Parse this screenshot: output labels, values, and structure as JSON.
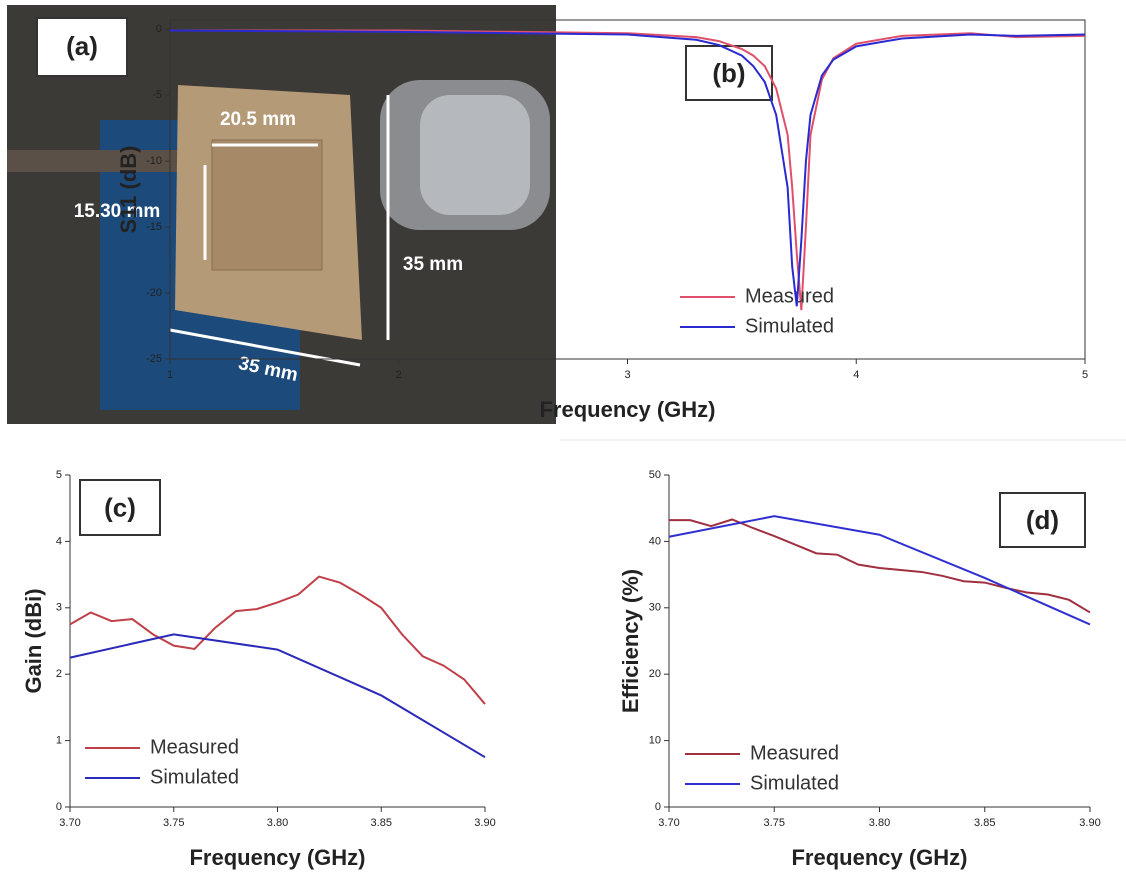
{
  "photo": {
    "label": "(a)",
    "dimensions": [
      "20.5 mm",
      "15.30 mm",
      "35 mm",
      "35 mm"
    ]
  },
  "chart_data": [
    {
      "type": "line",
      "annotation": "(b)",
      "x_label": "Frequency (GHz)",
      "y_label": "S11 (dB)",
      "xlim": [
        1,
        5
      ],
      "xticks": [
        1,
        2,
        3,
        4,
        5
      ],
      "ylim": [
        -25,
        0.7
      ],
      "yticks": [
        -25,
        -20,
        -15,
        -10,
        -5,
        0
      ],
      "frame": true,
      "series": [
        {
          "name": "Measured",
          "color": "#e0506a",
          "x": [
            1,
            2,
            3,
            3.3,
            3.4,
            3.5,
            3.55,
            3.6,
            3.65,
            3.7,
            3.72,
            3.74,
            3.76,
            3.78,
            3.8,
            3.85,
            3.9,
            4.0,
            4.2,
            4.5,
            4.7,
            5
          ],
          "values": [
            -0.1,
            -0.1,
            -0.3,
            -0.6,
            -0.9,
            -1.5,
            -2.0,
            -2.8,
            -4.5,
            -8,
            -12,
            -17,
            -21.3,
            -15,
            -8,
            -3.8,
            -2.2,
            -1.1,
            -0.5,
            -0.3,
            -0.6,
            -0.5
          ]
        },
        {
          "name": "Simulated",
          "color": "#2a2ad0",
          "x": [
            1,
            2,
            3,
            3.3,
            3.4,
            3.5,
            3.55,
            3.6,
            3.65,
            3.7,
            3.72,
            3.74,
            3.76,
            3.78,
            3.8,
            3.85,
            3.9,
            4.0,
            4.2,
            4.5,
            4.7,
            5
          ],
          "values": [
            -0.1,
            -0.2,
            -0.4,
            -0.8,
            -1.2,
            -2.0,
            -2.8,
            -4.0,
            -6.5,
            -12,
            -18,
            -21,
            -16,
            -10,
            -6.5,
            -3.5,
            -2.3,
            -1.3,
            -0.7,
            -0.4,
            -0.5,
            -0.4
          ]
        }
      ]
    },
    {
      "type": "line",
      "annotation": "(c)",
      "x_label": "Frequency (GHz)",
      "y_label": "Gain (dBi)",
      "xlim": [
        3.7,
        3.9
      ],
      "xticks": [
        {
          "value": 3.7,
          "label": "3.70"
        },
        {
          "value": 3.75,
          "label": "3.75"
        },
        {
          "value": 3.8,
          "label": "3.80"
        },
        {
          "value": 3.85,
          "label": "3.85"
        },
        {
          "value": 3.9,
          "label": "3.90"
        }
      ],
      "ylim": [
        0,
        5
      ],
      "yticks": [
        0,
        1,
        2,
        3,
        4,
        5
      ],
      "frame": false,
      "series": [
        {
          "name": "Measured",
          "color": "#c0404a",
          "x": [
            3.7,
            3.71,
            3.72,
            3.73,
            3.74,
            3.75,
            3.76,
            3.77,
            3.78,
            3.79,
            3.8,
            3.81,
            3.82,
            3.83,
            3.84,
            3.85,
            3.86,
            3.87,
            3.88,
            3.89,
            3.9
          ],
          "values": [
            2.75,
            2.93,
            2.8,
            2.83,
            2.6,
            2.43,
            2.38,
            2.7,
            2.95,
            2.98,
            3.08,
            3.2,
            3.47,
            3.38,
            3.2,
            3.0,
            2.6,
            2.27,
            2.13,
            1.92,
            1.55
          ]
        },
        {
          "name": "Simulated",
          "color": "#2a2ab8",
          "x": [
            3.7,
            3.75,
            3.8,
            3.85,
            3.9
          ],
          "values": [
            2.25,
            2.6,
            2.37,
            1.68,
            0.75
          ]
        }
      ]
    },
    {
      "type": "line",
      "annotation": "(d)",
      "x_label": "Frequency (GHz)",
      "y_label": "Efficiency (%)",
      "xlim": [
        3.7,
        3.9
      ],
      "xticks": [
        {
          "value": 3.7,
          "label": "3.70"
        },
        {
          "value": 3.75,
          "label": "3.75"
        },
        {
          "value": 3.8,
          "label": "3.80"
        },
        {
          "value": 3.85,
          "label": "3.85"
        },
        {
          "value": 3.9,
          "label": "3.90"
        }
      ],
      "ylim": [
        0,
        50
      ],
      "yticks": [
        0,
        10,
        20,
        30,
        40,
        50
      ],
      "frame": false,
      "series": [
        {
          "name": "Measured",
          "color": "#a03040",
          "x": [
            3.7,
            3.71,
            3.72,
            3.73,
            3.74,
            3.75,
            3.76,
            3.77,
            3.78,
            3.79,
            3.8,
            3.81,
            3.82,
            3.83,
            3.84,
            3.85,
            3.86,
            3.87,
            3.88,
            3.89,
            3.9
          ],
          "values": [
            43.2,
            43.2,
            42.3,
            43.3,
            42,
            40.8,
            39.5,
            38.2,
            38,
            36.5,
            36,
            35.7,
            35.4,
            34.8,
            34,
            33.8,
            33,
            32.3,
            32,
            31.2,
            29.3
          ]
        },
        {
          "name": "Simulated",
          "color": "#3030d0",
          "x": [
            3.7,
            3.75,
            3.8,
            3.85,
            3.9
          ],
          "values": [
            40.7,
            43.8,
            41,
            34.5,
            27.5
          ]
        }
      ]
    }
  ]
}
